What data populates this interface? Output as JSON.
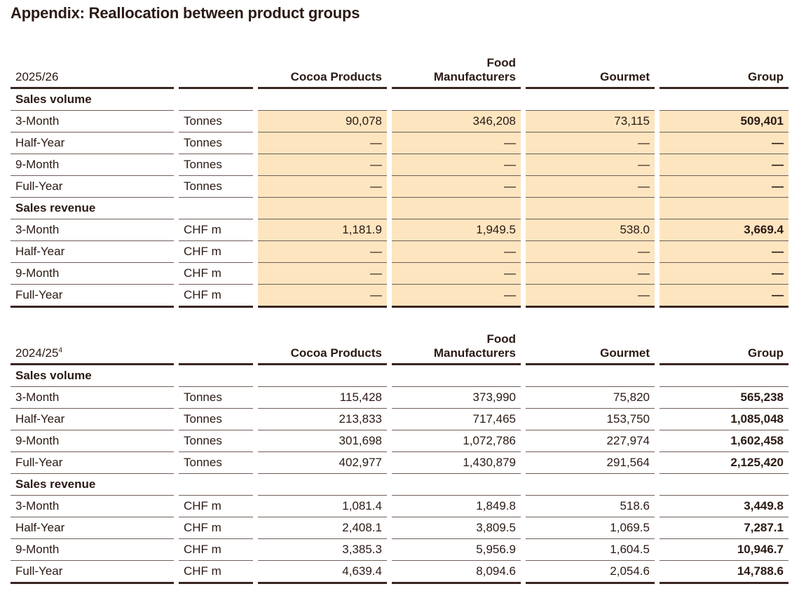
{
  "title": "Appendix: Reallocation between product groups",
  "highlight_color": "#fde5c0",
  "columns": [
    "Cocoa Products",
    "Food Manufacturers",
    "Gourmet",
    "Group"
  ],
  "tables": [
    {
      "period": "2025/26",
      "footnote": "",
      "highlighted": true,
      "sections": [
        {
          "label": "Sales volume",
          "rows": [
            {
              "label": "3-Month",
              "unit": "Tonnes",
              "values": [
                "90,078",
                "346,208",
                "73,115",
                "509,401"
              ]
            },
            {
              "label": "Half-Year",
              "unit": "Tonnes",
              "values": [
                "—",
                "—",
                "—",
                "—"
              ]
            },
            {
              "label": "9-Month",
              "unit": "Tonnes",
              "values": [
                "—",
                "—",
                "—",
                "—"
              ]
            },
            {
              "label": "Full-Year",
              "unit": "Tonnes",
              "values": [
                "—",
                "—",
                "—",
                "—"
              ]
            }
          ]
        },
        {
          "label": "Sales revenue",
          "rows": [
            {
              "label": "3-Month",
              "unit": "CHF m",
              "values": [
                "1,181.9",
                "1,949.5",
                "538.0",
                "3,669.4"
              ]
            },
            {
              "label": "Half-Year",
              "unit": "CHF m",
              "values": [
                "—",
                "—",
                "—",
                "—"
              ]
            },
            {
              "label": "9-Month",
              "unit": "CHF m",
              "values": [
                "—",
                "—",
                "—",
                "—"
              ]
            },
            {
              "label": "Full-Year",
              "unit": "CHF m",
              "values": [
                "—",
                "—",
                "—",
                "—"
              ]
            }
          ]
        }
      ]
    },
    {
      "period": "2024/25",
      "footnote": "4",
      "highlighted": false,
      "sections": [
        {
          "label": "Sales volume",
          "rows": [
            {
              "label": "3-Month",
              "unit": "Tonnes",
              "values": [
                "115,428",
                "373,990",
                "75,820",
                "565,238"
              ]
            },
            {
              "label": "Half-Year",
              "unit": "Tonnes",
              "values": [
                "213,833",
                "717,465",
                "153,750",
                "1,085,048"
              ]
            },
            {
              "label": "9-Month",
              "unit": "Tonnes",
              "values": [
                "301,698",
                "1,072,786",
                "227,974",
                "1,602,458"
              ]
            },
            {
              "label": "Full-Year",
              "unit": "Tonnes",
              "values": [
                "402,977",
                "1,430,879",
                "291,564",
                "2,125,420"
              ]
            }
          ]
        },
        {
          "label": "Sales revenue",
          "rows": [
            {
              "label": "3-Month",
              "unit": "CHF m",
              "values": [
                "1,081.4",
                "1,849.8",
                "518.6",
                "3,449.8"
              ]
            },
            {
              "label": "Half-Year",
              "unit": "CHF m",
              "values": [
                "2,408.1",
                "3,809.5",
                "1,069.5",
                "7,287.1"
              ]
            },
            {
              "label": "9-Month",
              "unit": "CHF m",
              "values": [
                "3,385.3",
                "5,956.9",
                "1,604.5",
                "10,946.7"
              ]
            },
            {
              "label": "Full-Year",
              "unit": "CHF m",
              "values": [
                "4,639.4",
                "8,094.6",
                "2,054.6",
                "14,788.6"
              ]
            }
          ]
        }
      ]
    }
  ]
}
